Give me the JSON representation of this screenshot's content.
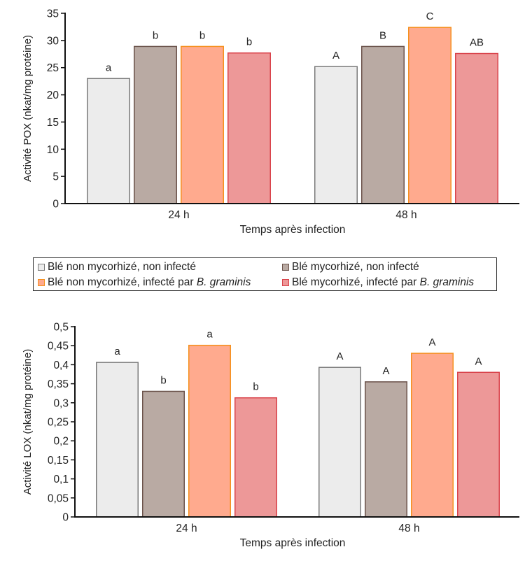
{
  "chart_data": [
    {
      "type": "bar",
      "title": "",
      "xlabel": "Temps après infection",
      "ylabel": "Activité POX (nkat/mg protéine)",
      "ylim": [
        0,
        35
      ],
      "yticks": [
        "0",
        "5",
        "10",
        "15",
        "20",
        "25",
        "30",
        "35"
      ],
      "ytick_values": [
        0,
        5,
        10,
        15,
        20,
        25,
        30,
        35
      ],
      "categories": [
        "24 h",
        "48 h"
      ],
      "grid": false,
      "series": [
        {
          "name": "Blé non mycorhizé, non infecté",
          "values": [
            23.0,
            25.2
          ],
          "letters": [
            "a",
            "A"
          ]
        },
        {
          "name": "Blé mycorhizé, non infecté",
          "values": [
            28.9,
            28.9
          ],
          "letters": [
            "b",
            "B"
          ]
        },
        {
          "name": "Blé non mycorhizé, infecté par B. graminis",
          "values": [
            28.9,
            32.4
          ],
          "letters": [
            "b",
            "C"
          ]
        },
        {
          "name": "Blé mycorhizé, infecté par B. graminis",
          "values": [
            27.7,
            27.6
          ],
          "letters": [
            "b",
            "AB"
          ]
        }
      ]
    },
    {
      "type": "bar",
      "title": "",
      "xlabel": "Temps après infection",
      "ylabel": "Activité LOX (nkat/mg protéine)",
      "ylim": [
        0,
        0.5
      ],
      "yticks": [
        "0",
        "0,05",
        "0,1",
        "0,15",
        "0,2",
        "0,25",
        "0,3",
        "0,35",
        "0,4",
        "0,45",
        "0,5"
      ],
      "ytick_values": [
        0,
        0.05,
        0.1,
        0.15,
        0.2,
        0.25,
        0.3,
        0.35,
        0.4,
        0.45,
        0.5
      ],
      "categories": [
        "24 h",
        "48 h"
      ],
      "grid": false,
      "series": [
        {
          "name": "Blé non mycorhizé, non infecté",
          "values": [
            0.406,
            0.393
          ],
          "letters": [
            "a",
            "A"
          ]
        },
        {
          "name": "Blé mycorhizé, non infecté",
          "values": [
            0.33,
            0.355
          ],
          "letters": [
            "b",
            "A"
          ]
        },
        {
          "name": "Blé non mycorhizé, infecté par B. graminis",
          "values": [
            0.451,
            0.43
          ],
          "letters": [
            "a",
            "A"
          ]
        },
        {
          "name": "Blé mycorhizé, infecté par B. graminis",
          "values": [
            0.313,
            0.38
          ],
          "letters": [
            "b",
            "A"
          ]
        }
      ]
    }
  ],
  "series_colors": [
    {
      "fill": "#ececec",
      "stroke": "#7a7a7a"
    },
    {
      "fill": "#b9aaa3",
      "stroke": "#6b534b"
    },
    {
      "fill": "#ffaa8e",
      "stroke": "#f5901e"
    },
    {
      "fill": "#ed9898",
      "stroke": "#d9434b"
    }
  ],
  "legend": {
    "placement": "center",
    "items": [
      {
        "text": "Blé non mycorhizé, non infecté",
        "italic": ""
      },
      {
        "text": "Blé mycorhizé, non infecté",
        "italic": ""
      },
      {
        "text": "Blé non mycorhizé, infecté par ",
        "italic": "B. graminis"
      },
      {
        "text": "Blé mycorhizé, infecté par ",
        "italic": "B. graminis"
      }
    ]
  }
}
